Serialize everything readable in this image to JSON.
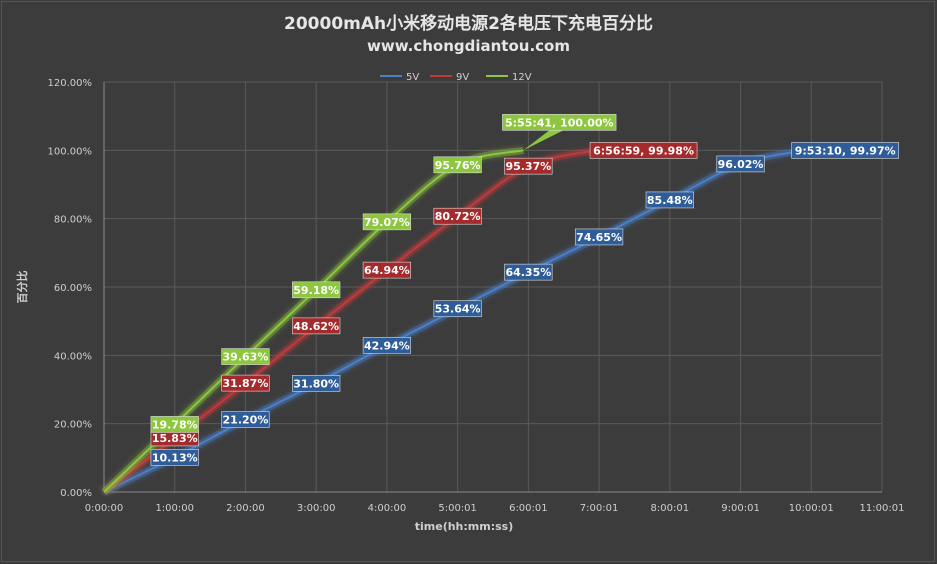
{
  "chart_data": {
    "type": "line",
    "title": "20000mAh小米移动电源2各电压下充电百分比",
    "subtitle": "www.chongdiantou.com",
    "xlabel": "time(hh:mm:ss)",
    "ylabel": "百分比",
    "x_tick_labels": [
      "0:00:00",
      "1:00:00",
      "2:00:00",
      "3:00:00",
      "4:00:00",
      "5:00:01",
      "6:00:01",
      "7:00:01",
      "8:00:01",
      "9:00:01",
      "10:00:01",
      "11:00:01"
    ],
    "x_tick_hours": [
      0,
      1,
      2,
      3,
      4,
      5,
      6,
      7,
      8,
      9,
      10,
      11
    ],
    "y_tick_labels": [
      "0.00%",
      "20.00%",
      "40.00%",
      "60.00%",
      "80.00%",
      "100.00%",
      "120.00%"
    ],
    "xlim_hours": [
      0,
      11
    ],
    "ylim": [
      0,
      120
    ],
    "grid": true,
    "legend_position": "top-center",
    "series": [
      {
        "name": "5V",
        "color": "#4a7fc9",
        "label_color": "#2f5d9a",
        "points": [
          [
            0,
            0
          ],
          [
            1,
            10.13
          ],
          [
            2,
            21.2
          ],
          [
            3,
            31.8
          ],
          [
            4,
            42.94
          ],
          [
            5,
            53.64
          ],
          [
            6,
            64.35
          ],
          [
            7,
            74.65
          ],
          [
            8,
            85.48
          ],
          [
            9,
            96.02
          ],
          [
            9.886,
            99.97
          ]
        ],
        "labels": [
          {
            "x": 1,
            "y": 10.13,
            "text": "10.13%"
          },
          {
            "x": 2,
            "y": 21.2,
            "text": "21.20%"
          },
          {
            "x": 3,
            "y": 31.8,
            "text": "31.80%"
          },
          {
            "x": 4,
            "y": 42.94,
            "text": "42.94%"
          },
          {
            "x": 5,
            "y": 53.64,
            "text": "53.64%"
          },
          {
            "x": 6,
            "y": 64.35,
            "text": "64.35%"
          },
          {
            "x": 7,
            "y": 74.65,
            "text": "74.65%"
          },
          {
            "x": 8,
            "y": 85.48,
            "text": "85.48%"
          },
          {
            "x": 9,
            "y": 96.02,
            "text": "96.02%"
          },
          {
            "x": 9.886,
            "y": 99.97,
            "text": "9:53:10, 99.97%"
          }
        ]
      },
      {
        "name": "9V",
        "color": "#c0393b",
        "label_color": "#a52a2c",
        "points": [
          [
            0,
            0
          ],
          [
            1,
            15.83
          ],
          [
            2,
            31.87
          ],
          [
            3,
            48.62
          ],
          [
            4,
            64.94
          ],
          [
            5,
            80.72
          ],
          [
            6,
            95.37
          ],
          [
            6.95,
            99.98
          ]
        ],
        "labels": [
          {
            "x": 1,
            "y": 15.83,
            "text": "15.83%"
          },
          {
            "x": 2,
            "y": 31.87,
            "text": "31.87%"
          },
          {
            "x": 3,
            "y": 48.62,
            "text": "48.62%"
          },
          {
            "x": 4,
            "y": 64.94,
            "text": "64.94%"
          },
          {
            "x": 5,
            "y": 80.72,
            "text": "80.72%"
          },
          {
            "x": 6,
            "y": 95.37,
            "text": "95.37%"
          },
          {
            "x": 6.95,
            "y": 99.98,
            "text": "6:56:59, 99.98%"
          }
        ]
      },
      {
        "name": "12V",
        "color": "#8dc63f",
        "label_color": "#8dc63f",
        "points": [
          [
            0,
            0
          ],
          [
            1,
            19.78
          ],
          [
            2,
            39.63
          ],
          [
            3,
            59.18
          ],
          [
            4,
            79.07
          ],
          [
            5,
            95.76
          ],
          [
            5.928,
            100
          ]
        ],
        "labels": [
          {
            "x": 1,
            "y": 19.78,
            "text": "19.78%"
          },
          {
            "x": 2,
            "y": 39.63,
            "text": "39.63%"
          },
          {
            "x": 3,
            "y": 59.18,
            "text": "59.18%"
          },
          {
            "x": 4,
            "y": 79.07,
            "text": "79.07%"
          },
          {
            "x": 5,
            "y": 95.76,
            "text": "95.76%"
          },
          {
            "x": 5.928,
            "y": 100,
            "text": "5:55:41, 100.00%"
          }
        ]
      }
    ]
  }
}
